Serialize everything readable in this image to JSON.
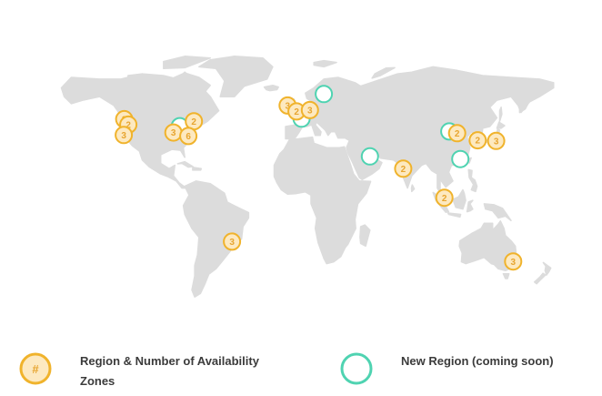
{
  "colors": {
    "land": "#dcdcdc",
    "region_stroke": "#f0b32c",
    "region_fill": "#fde9c0",
    "region_text": "#e7a530",
    "new_region_stroke": "#4fd3b1",
    "legend_text": "#3b3b3b"
  },
  "regions": [
    {
      "id": "us-west-2",
      "count": "3",
      "lon": -122.7,
      "lat": 47.2
    },
    {
      "id": "us-west-1a",
      "count": "2",
      "lon": -119.8,
      "lat": 44.1
    },
    {
      "id": "us-west-1b",
      "count": "3",
      "lon": -123.0,
      "lat": 38.2
    },
    {
      "id": "ca-central",
      "count": "2",
      "lon": -73.6,
      "lat": 46.0
    },
    {
      "id": "us-east-2",
      "count": "3",
      "lon": -88.0,
      "lat": 39.6
    },
    {
      "id": "us-east-1",
      "count": "6",
      "lon": -77.5,
      "lat": 37.6
    },
    {
      "id": "eu-west-1",
      "count": "3",
      "lon": -7.5,
      "lat": 55.0
    },
    {
      "id": "eu-west-2",
      "count": "2",
      "lon": -1.2,
      "lat": 51.6
    },
    {
      "id": "eu-central-1",
      "count": "3",
      "lon": 8.2,
      "lat": 52.4
    },
    {
      "id": "ap-south-1",
      "count": "2",
      "lon": 74.0,
      "lat": 19.0
    },
    {
      "id": "cn-north-1",
      "count": "2",
      "lon": 112.0,
      "lat": 39.2
    },
    {
      "id": "ap-northeast-2",
      "count": "2",
      "lon": 126.5,
      "lat": 35.2
    },
    {
      "id": "ap-northeast-1",
      "count": "3",
      "lon": 139.5,
      "lat": 34.8
    },
    {
      "id": "ap-southeast-1",
      "count": "2",
      "lon": 103.0,
      "lat": 2.5
    },
    {
      "id": "ap-southeast-2",
      "count": "3",
      "lon": 151.5,
      "lat": -33.8
    },
    {
      "id": "sa-east-1",
      "count": "3",
      "lon": -46.7,
      "lat": -22.5
    }
  ],
  "new_regions": [
    {
      "id": "us-east-new",
      "lon": -83.5,
      "lat": 43.2
    },
    {
      "id": "eu-france",
      "lon": 2.3,
      "lat": 47.5
    },
    {
      "id": "eu-sweden",
      "lon": 18.0,
      "lat": 61.5
    },
    {
      "id": "me-south",
      "lon": 50.5,
      "lat": 26.0
    },
    {
      "id": "cn-northwest",
      "lon": 106.5,
      "lat": 40.2
    },
    {
      "id": "ap-east",
      "lon": 114.2,
      "lat": 24.5
    }
  ],
  "legend": {
    "region_icon_symbol": "#",
    "region_label": "Region & Number of Availability Zones",
    "new_region_label": "New Region (coming soon)"
  }
}
